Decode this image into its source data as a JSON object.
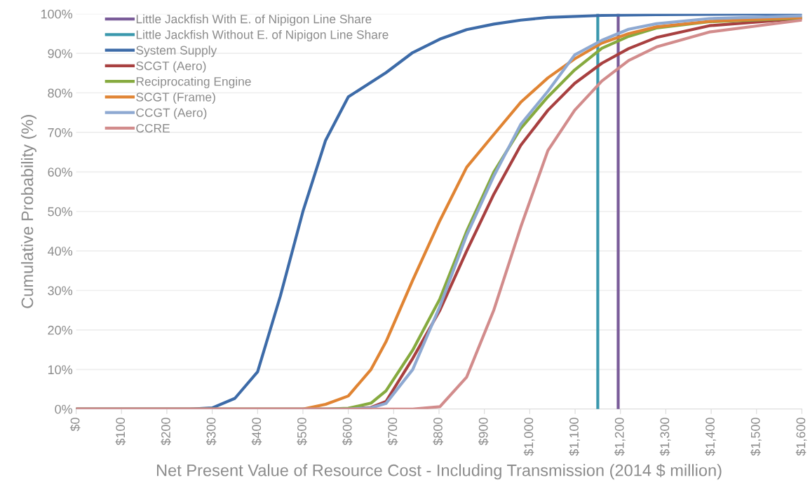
{
  "chart_data": {
    "type": "line",
    "xlabel": "Net Present Value of Resource Cost - Including Transmission (2014 $ million)",
    "ylabel": "Cumulative Probability (%)",
    "xlim": [
      0,
      1600
    ],
    "xticks": [
      {
        "value": 0,
        "label": "$0"
      },
      {
        "value": 100,
        "label": "$100"
      },
      {
        "value": 200,
        "label": "$200"
      },
      {
        "value": 300,
        "label": "$300"
      },
      {
        "value": 400,
        "label": "$400"
      },
      {
        "value": 500,
        "label": "$500"
      },
      {
        "value": 600,
        "label": "$600"
      },
      {
        "value": 700,
        "label": "$700"
      },
      {
        "value": 800,
        "label": "$800"
      },
      {
        "value": 900,
        "label": "$900"
      },
      {
        "value": 1000,
        "label": "$1,000"
      },
      {
        "value": 1100,
        "label": "$1,100"
      },
      {
        "value": 1200,
        "label": "$1,200"
      },
      {
        "value": 1300,
        "label": "$1,300"
      },
      {
        "value": 1400,
        "label": "$1,400"
      },
      {
        "value": 1500,
        "label": "$1,500"
      },
      {
        "value": 1600,
        "label": "$1,600"
      }
    ],
    "ylim": [
      0,
      100
    ],
    "yticks": [
      {
        "value": 0,
        "label": "0%"
      },
      {
        "value": 10,
        "label": "10%"
      },
      {
        "value": 20,
        "label": "20%"
      },
      {
        "value": 30,
        "label": "30%"
      },
      {
        "value": 40,
        "label": "40%"
      },
      {
        "value": 50,
        "label": "50%"
      },
      {
        "value": 60,
        "label": "60%"
      },
      {
        "value": 70,
        "label": "70%"
      },
      {
        "value": 80,
        "label": "80%"
      },
      {
        "value": 90,
        "label": "90%"
      },
      {
        "value": 100,
        "label": "100%"
      }
    ],
    "grid": "y",
    "legend": "top left",
    "series": [
      {
        "name": "Little Jackfish With E. of Nipigon Line Share",
        "color": "#7a5c99",
        "x": [
          1195,
          1195
        ],
        "values": [
          0,
          100
        ]
      },
      {
        "name": "Little Jackfish Without E. of Nipigon Line Share",
        "color": "#3a98ad",
        "x": [
          1150,
          1150
        ],
        "values": [
          0,
          100
        ]
      },
      {
        "name": "System Supply",
        "color": "#3d6ba8",
        "x": [
          0,
          250,
          300,
          350,
          400,
          450,
          500,
          550,
          600,
          683,
          742,
          802,
          861,
          921,
          980,
          1040,
          1159,
          1279,
          1600
        ],
        "values": [
          0,
          0,
          0.3,
          2.7,
          9.4,
          28.5,
          50,
          68,
          79,
          85.1,
          90.2,
          93.6,
          96,
          97.4,
          98.4,
          99.1,
          99.6,
          99.8,
          100
        ]
      },
      {
        "name": "SCGT (Aero)",
        "color": "#a84040",
        "x": [
          0,
          600,
          650,
          683,
          742,
          802,
          861,
          921,
          980,
          1040,
          1099,
          1159,
          1218,
          1279,
          1396,
          1600
        ],
        "values": [
          0,
          0,
          0.4,
          1.9,
          12.8,
          25,
          40,
          54.4,
          66.7,
          75.6,
          82.4,
          87.5,
          91.2,
          94,
          97,
          98.8
        ]
      },
      {
        "name": "Reciprocating Engine",
        "color": "#86aa3f",
        "x": [
          0,
          550,
          600,
          650,
          683,
          742,
          802,
          861,
          921,
          980,
          1040,
          1099,
          1159,
          1218,
          1279,
          1396,
          1600
        ],
        "values": [
          0,
          0,
          0.2,
          1.5,
          4.6,
          14.9,
          27.9,
          45,
          60,
          71,
          79,
          85.8,
          91.3,
          94.3,
          96.4,
          98,
          98.9
        ]
      },
      {
        "name": "SCGT (Frame)",
        "color": "#e08433",
        "x": [
          0,
          500,
          550,
          600,
          650,
          683,
          742,
          802,
          861,
          921,
          980,
          1040,
          1099,
          1159,
          1218,
          1279,
          1396,
          1600
        ],
        "values": [
          0,
          0,
          1.2,
          3.3,
          10,
          17,
          32.6,
          47.7,
          61.2,
          69.5,
          77.6,
          83.8,
          88.6,
          92.6,
          95,
          96.7,
          98.1,
          99.1
        ]
      },
      {
        "name": "CCGT (Aero)",
        "color": "#8ea9d2",
        "x": [
          0,
          600,
          650,
          683,
          742,
          802,
          861,
          921,
          980,
          1040,
          1099,
          1159,
          1218,
          1279,
          1396,
          1600
        ],
        "values": [
          0,
          0,
          0.3,
          1.4,
          10,
          26,
          44,
          59,
          72,
          80.4,
          89.6,
          93.3,
          96.1,
          97.5,
          98.8,
          99.5
        ]
      },
      {
        "name": "CCRE",
        "color": "#d28c8c",
        "x": [
          0,
          742,
          802,
          861,
          921,
          980,
          1040,
          1099,
          1159,
          1218,
          1279,
          1396,
          1600
        ],
        "values": [
          0,
          0,
          0.6,
          8.1,
          25.1,
          46,
          65.4,
          75.6,
          83,
          88.2,
          91.6,
          95.4,
          98.4
        ]
      }
    ]
  }
}
